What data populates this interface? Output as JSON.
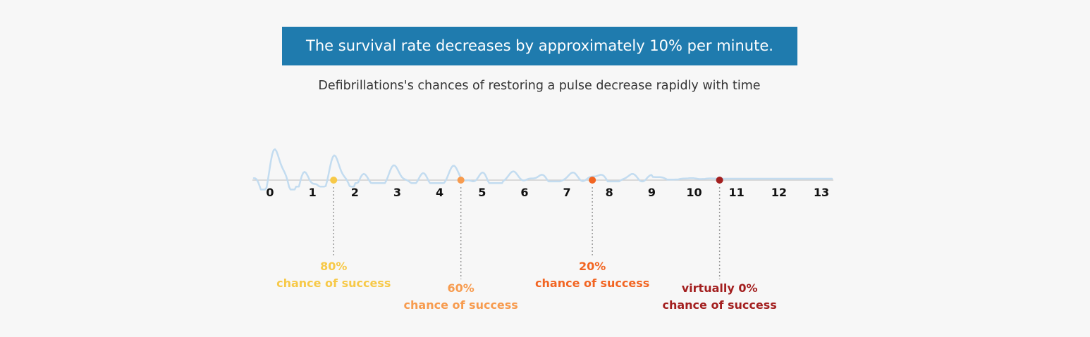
{
  "header": {
    "title": "The survival rate decreases by approximately 10% per minute.",
    "subtitle": "Defibrillations's chances of restoring a pulse decrease rapidly with time"
  },
  "colors": {
    "title_bg": "#1f7bae",
    "line": "#c3dcf0",
    "axis": "#cfcfcf",
    "leader": "#9a9a9a"
  },
  "chart_data": {
    "type": "line",
    "x_ticks": [
      "0",
      "1",
      "2",
      "3",
      "4",
      "5",
      "6",
      "7",
      "8",
      "9",
      "10",
      "11",
      "12",
      "13"
    ],
    "xlim": [
      0,
      13
    ],
    "grid": false,
    "annotations": [
      {
        "x": 1.5,
        "percent": "80%",
        "text": "chance of success",
        "color": "#f7c948",
        "label_row": 0
      },
      {
        "x": 4.5,
        "percent": "60%",
        "text": "chance of success",
        "color": "#f79b4e",
        "label_row": 1
      },
      {
        "x": 7.6,
        "percent": "20%",
        "text": "chance of success",
        "color": "#f26522",
        "label_row": 0
      },
      {
        "x": 10.6,
        "percent": "virtually 0%",
        "text": "chance of success",
        "color": "#a31f1f",
        "label_row": 1
      }
    ]
  }
}
